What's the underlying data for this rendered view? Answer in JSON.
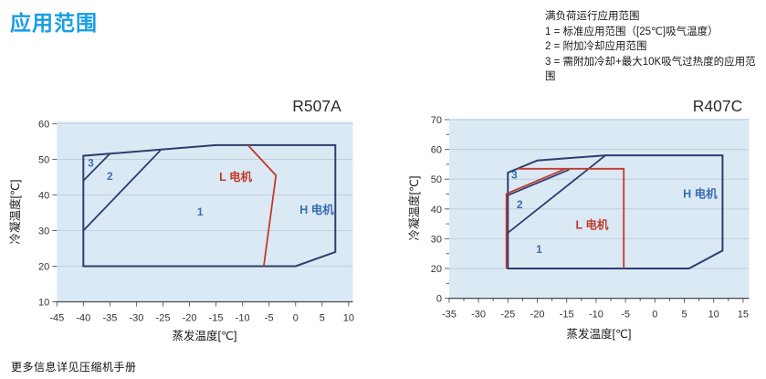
{
  "page": {
    "title": "应用范围",
    "title_color": "#189de8",
    "footer": "更多信息详见压缩机手册"
  },
  "legend": {
    "heading": "满负荷运行应用范围",
    "items": [
      "1 = 标准应用范围（[25℃]吸气温度）",
      "2 = 附加冷却应用范围",
      "3 = 需附加冷却+最大10K吸气过热度的应用范围"
    ]
  },
  "colors": {
    "envelope_blue": "#2c3e6d",
    "envelope_red": "#c2392b",
    "label_blue": "#3a6cb0",
    "label_red": "#c2392b",
    "plot_bg": "#dbe9f5",
    "grid": "#c2cfdd",
    "tick_text": "#333333",
    "axis_line": "#474747",
    "title_text": "#2c2c2c"
  },
  "chart_data": [
    {
      "type": "area",
      "title": "R507A",
      "xlabel": "蒸发温度[℃]",
      "ylabel": "冷凝温度[℃]",
      "xlim": [
        -45,
        10
      ],
      "ylim": [
        10,
        60
      ],
      "x_ticks": [
        -45,
        -40,
        -35,
        -30,
        -25,
        -20,
        -15,
        -10,
        -5,
        0,
        5,
        10
      ],
      "y_ticks": [
        60,
        50,
        40,
        30,
        20,
        10
      ],
      "grid_y": [
        60,
        50,
        40,
        30,
        20
      ],
      "series": [
        {
          "name": "h-motor-envelope",
          "color": "blue",
          "closed": true,
          "width": 2,
          "points": [
            [
              -40,
              20
            ],
            [
              -40,
              51
            ],
            [
              -15,
              54
            ],
            [
              7.5,
              54
            ],
            [
              7.5,
              24
            ],
            [
              0,
              20
            ]
          ]
        },
        {
          "name": "zone-2-boundary",
          "color": "blue",
          "closed": false,
          "width": 1.8,
          "points": [
            [
              -40,
              30
            ],
            [
              -25.5,
              52.5
            ]
          ]
        },
        {
          "name": "zone-3-boundary",
          "color": "blue",
          "closed": false,
          "width": 1.8,
          "points": [
            [
              -40,
              44
            ],
            [
              -35,
              51.6
            ]
          ]
        },
        {
          "name": "l-motor-boundary",
          "color": "red",
          "closed": false,
          "width": 1.8,
          "points": [
            [
              -9,
              54
            ],
            [
              -3.7,
              45.5
            ],
            [
              -6,
              20
            ]
          ]
        }
      ],
      "labels": [
        {
          "text": "3",
          "x": -38.6,
          "y": 49,
          "color": "blue",
          "size": 12
        },
        {
          "text": "2",
          "x": -35,
          "y": 45.3,
          "color": "blue",
          "size": 12
        },
        {
          "text": "1",
          "x": -18,
          "y": 35.3,
          "color": "blue",
          "size": 12
        },
        {
          "text": "L 电机",
          "x": -11.3,
          "y": 45,
          "color": "red",
          "size": 12.5
        },
        {
          "text": "H 电机",
          "x": 4,
          "y": 35.8,
          "color": "blue",
          "size": 12.5
        }
      ]
    },
    {
      "type": "area",
      "title": "R407C",
      "xlabel": "蒸发温度[℃]",
      "ylabel": "冷凝温度[℃]",
      "xlim": [
        -35,
        15
      ],
      "ylim": [
        0,
        70
      ],
      "x_ticks": [
        -35,
        -30,
        -25,
        -20,
        -15,
        -10,
        -5,
        0,
        5,
        10,
        15
      ],
      "x_minor_step": 2.5,
      "y_ticks": [
        70,
        60,
        50,
        40,
        30,
        20,
        0
      ],
      "y_minor_ticks": [
        65,
        55,
        45,
        35,
        25,
        10
      ],
      "grid_y": [
        70,
        60,
        50,
        40,
        30,
        20
      ],
      "series": [
        {
          "name": "h-motor-envelope",
          "color": "blue",
          "closed": true,
          "width": 2,
          "points": [
            [
              -25,
              20
            ],
            [
              -25,
              52.2
            ],
            [
              -20,
              56.3
            ],
            [
              -8.4,
              58
            ],
            [
              11.5,
              58
            ],
            [
              11.5,
              26
            ],
            [
              5.8,
              20
            ]
          ]
        },
        {
          "name": "zone-2-boundary",
          "color": "blue",
          "closed": false,
          "width": 1.8,
          "points": [
            [
              -25,
              32
            ],
            [
              -8.4,
              58
            ]
          ]
        },
        {
          "name": "zone-3-boundary",
          "color": "blue",
          "closed": false,
          "width": 1.8,
          "points": [
            [
              -25,
              44.6
            ],
            [
              -14.6,
              53.2
            ]
          ]
        },
        {
          "name": "l-motor-left-boundary",
          "color": "red",
          "closed": false,
          "width": 1.8,
          "points": [
            [
              -25.25,
              20
            ],
            [
              -25.25,
              45.1
            ],
            [
              -15.2,
              53.5
            ]
          ]
        },
        {
          "name": "l-motor-envelope",
          "color": "red",
          "closed": false,
          "width": 1.8,
          "points": [
            [
              -23.3,
              53.5
            ],
            [
              -5.3,
              53.5
            ],
            [
              -5.3,
              20
            ]
          ]
        }
      ],
      "labels": [
        {
          "text": "3",
          "x": -23.9,
          "y": 51.5,
          "color": "blue",
          "size": 12
        },
        {
          "text": "2",
          "x": -23,
          "y": 41.5,
          "color": "blue",
          "size": 12
        },
        {
          "text": "1",
          "x": -19.7,
          "y": 26.5,
          "color": "blue",
          "size": 12
        },
        {
          "text": "L 电机",
          "x": -10.7,
          "y": 34.5,
          "color": "red",
          "size": 12.5
        },
        {
          "text": "H 电机",
          "x": 7.7,
          "y": 45,
          "color": "blue",
          "size": 12.5
        }
      ]
    }
  ]
}
